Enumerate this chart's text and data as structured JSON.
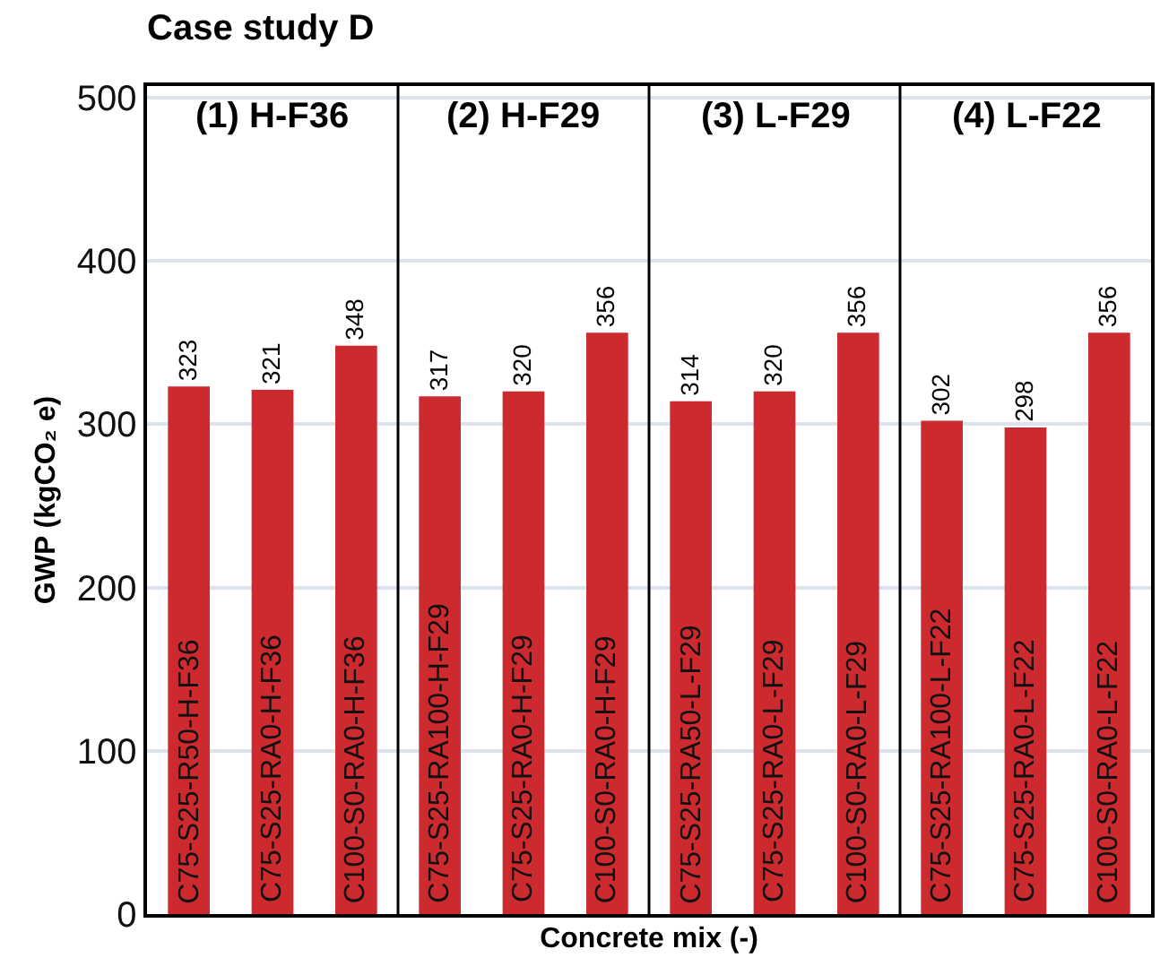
{
  "chart_data": {
    "type": "bar",
    "title": "Case study D",
    "xlabel": "Concrete mix (-)",
    "ylabel": "GWP (kgCO₂ e)",
    "categories": [
      "C75-S25-R50-H-F36",
      "C75-S25-RA0-H-F36",
      "C100-S0-RA0-H-F36",
      "C75-S25-RA100-H-F29",
      "C75-S25-RA0-H-F29",
      "C100-S0-RA0-H-F29",
      "C75-S25-RA50-L-F29",
      "C75-S25-RA0-L-F29",
      "C100-S0-RA0-L-F29",
      "C75-S25-RA100-L-F22",
      "C75-S25-RA0-L-F22",
      "C100-S0-RA0-L-F22"
    ],
    "values": [
      323,
      321,
      348,
      317,
      320,
      356,
      314,
      320,
      356,
      302,
      298,
      356
    ],
    "color": "#cc2a2e",
    "annotations": [
      "(1) H-F36",
      "(2) H-F29",
      "(3) L-F29",
      "(4) L-F22"
    ],
    "ylim": [
      0,
      507
    ],
    "yticks": [
      0,
      100,
      200,
      300,
      400,
      500
    ],
    "grid": "y",
    "data_labels": true,
    "legend": false
  }
}
